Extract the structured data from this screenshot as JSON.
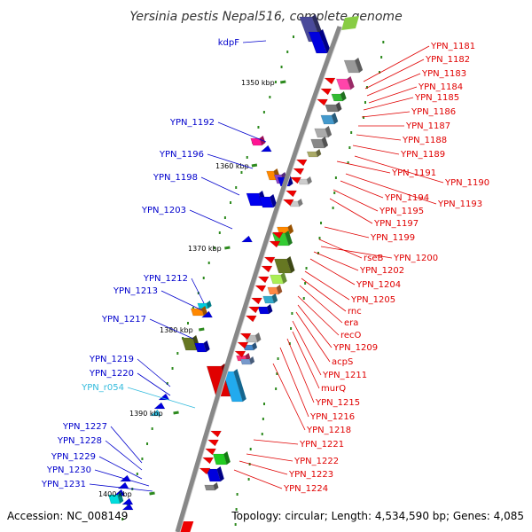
{
  "title": "Yersinia pestis Nepal516, complete genome",
  "footer": {
    "accession": "Accession: NC_008149",
    "topology": "Topology: circular; Length: 4,534,590 bp; Genes: 4,085"
  },
  "colors": {
    "backbone": "#888888",
    "tick": "#2d8a1e",
    "left_label": "#0000cc",
    "right_label": "#e00000",
    "rna_label": "#33bbdd"
  },
  "ticks": [
    "1350 kbp",
    "1360 kbp",
    "1370 kbp",
    "1380 kbp",
    "1390 kbp",
    "1400 kbp"
  ],
  "left_labels": [
    {
      "text": "kdpF",
      "color": "#0000cc"
    },
    {
      "text": "YPN_1192",
      "color": "#0000cc"
    },
    {
      "text": "YPN_1196",
      "color": "#0000cc"
    },
    {
      "text": "YPN_1198",
      "color": "#0000cc"
    },
    {
      "text": "YPN_1203",
      "color": "#0000cc"
    },
    {
      "text": "YPN_1212",
      "color": "#0000cc"
    },
    {
      "text": "YPN_1213",
      "color": "#0000cc"
    },
    {
      "text": "YPN_1217",
      "color": "#0000cc"
    },
    {
      "text": "YPN_1219",
      "color": "#0000cc"
    },
    {
      "text": "YPN_1220",
      "color": "#0000cc"
    },
    {
      "text": "YPN_r054",
      "color": "#33bbdd"
    },
    {
      "text": "YPN_1227",
      "color": "#0000cc"
    },
    {
      "text": "YPN_1228",
      "color": "#0000cc"
    },
    {
      "text": "YPN_1229",
      "color": "#0000cc"
    },
    {
      "text": "YPN_1230",
      "color": "#0000cc"
    },
    {
      "text": "YPN_1231",
      "color": "#0000cc"
    }
  ],
  "right_labels": [
    "YPN_1181",
    "YPN_1182",
    "YPN_1183",
    "YPN_1184",
    "YPN_1185",
    "YPN_1186",
    "YPN_1187",
    "YPN_1188",
    "YPN_1189",
    "YPN_1190",
    "YPN_1191",
    "YPN_1193",
    "YPN_1194",
    "YPN_1195",
    "YPN_1197",
    "YPN_1199",
    "rseB",
    "YPN_1200",
    "YPN_1202",
    "YPN_1204",
    "YPN_1205",
    "rnc",
    "era",
    "recO",
    "YPN_1209",
    "acpS",
    "YPN_1211",
    "murQ",
    "YPN_1215",
    "YPN_1216",
    "YPN_1218",
    "YPN_1221",
    "YPN_1222",
    "YPN_1223",
    "YPN_1224"
  ]
}
